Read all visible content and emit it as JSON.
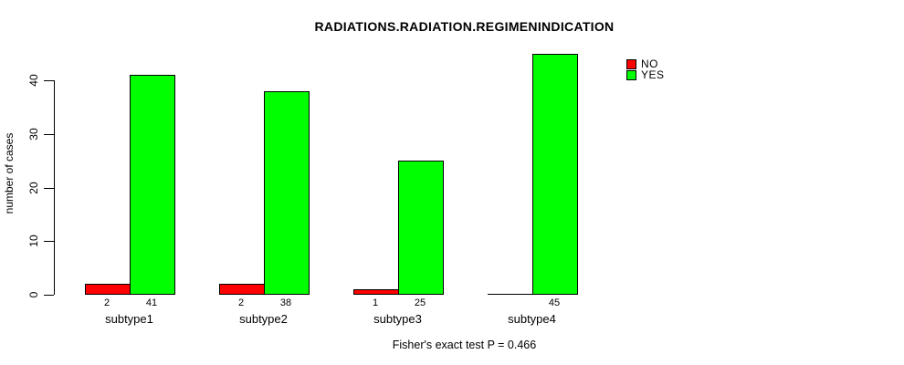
{
  "chart_data": {
    "type": "bar",
    "title": "RADIATIONS.RADIATION.REGIMENINDICATION",
    "ylabel": "number of cases",
    "xlabel": "",
    "categories": [
      "subtype1",
      "subtype2",
      "subtype3",
      "subtype4"
    ],
    "series": [
      {
        "name": "NO",
        "color": "#ff0000",
        "values": [
          2,
          2,
          1,
          0
        ]
      },
      {
        "name": "YES",
        "color": "#00ff00",
        "values": [
          41,
          38,
          25,
          45
        ]
      }
    ],
    "bar_value_labels": [
      "2",
      "41",
      "2",
      "38",
      "1",
      "25",
      "",
      "45"
    ],
    "yticks": [
      0,
      10,
      20,
      30,
      40
    ],
    "ylim": [
      0,
      45
    ],
    "grid": false,
    "legend_position": "top-right",
    "bar_border_color": "#000000",
    "footer": "Fisher's exact test P = 0.466"
  }
}
